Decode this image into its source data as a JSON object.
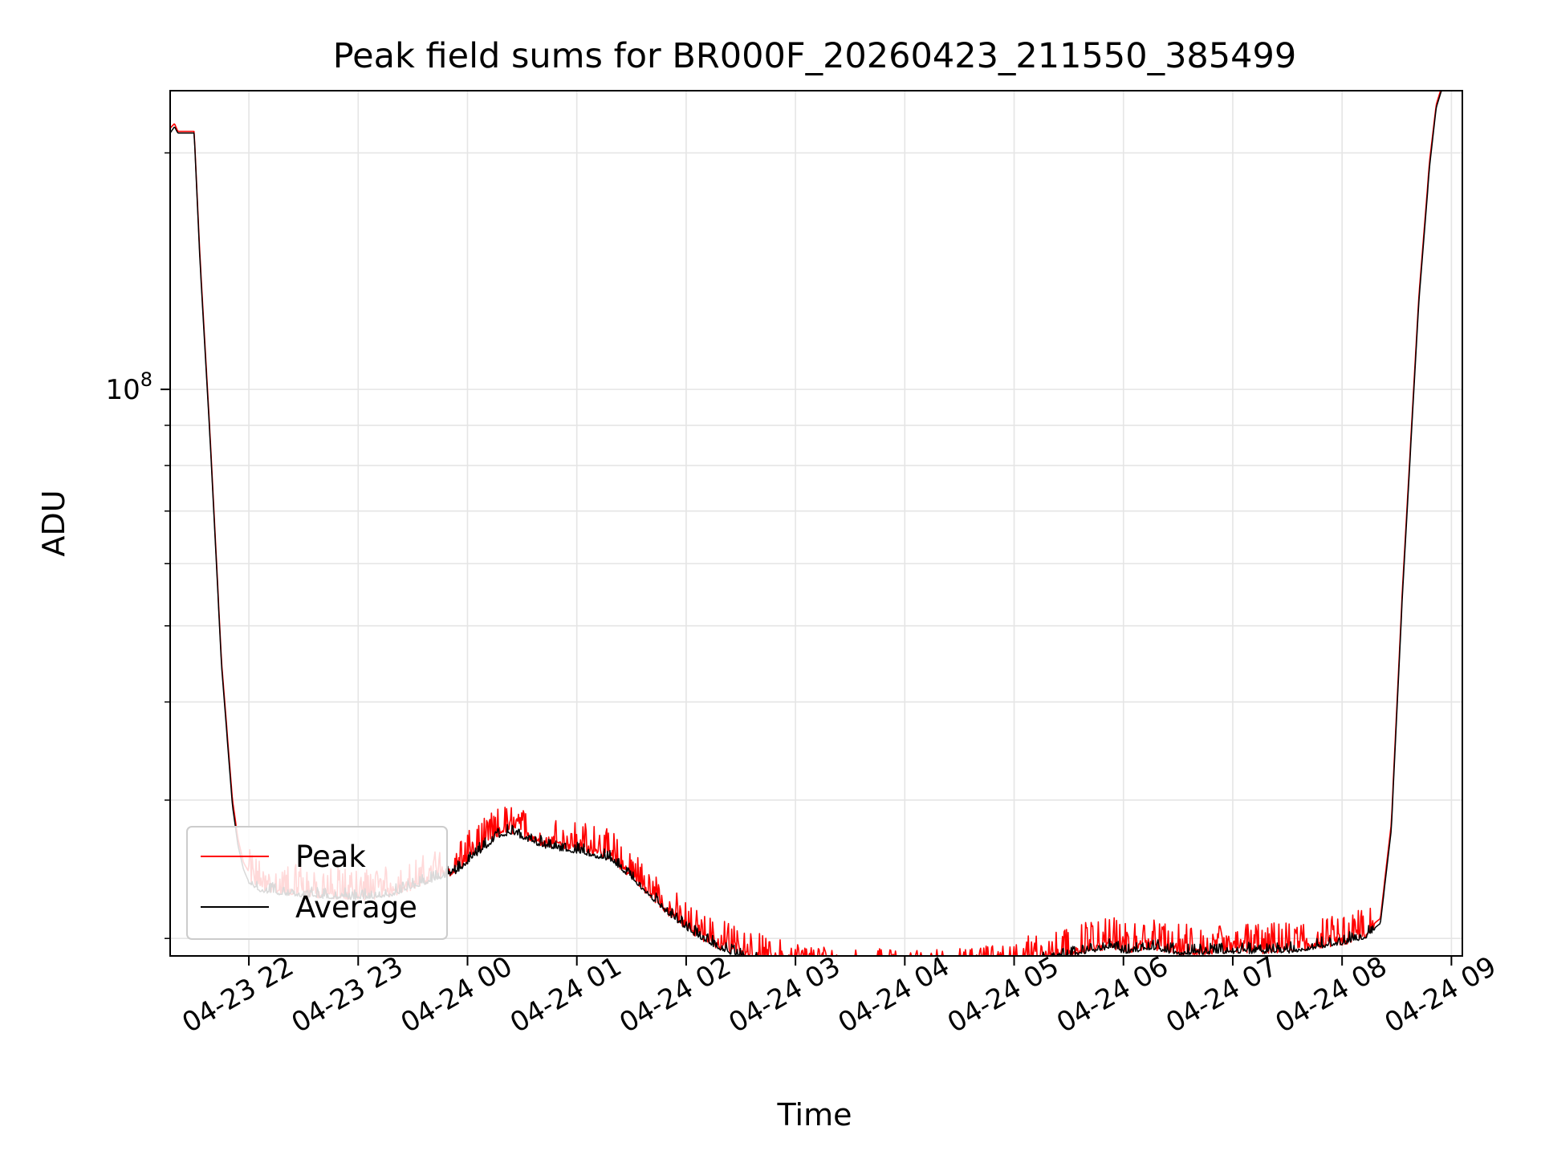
{
  "chart_data": {
    "type": "line",
    "title": "Peak field sums for BR000F_20260423_211550_385499",
    "xlabel": "Time",
    "ylabel": "ADU",
    "yscale": "log",
    "ylim": [
      19000000,
      240000000
    ],
    "xlim": [
      -0.72,
      11.1
    ],
    "x_unit": "hours since 2026-04-23 22:00",
    "grid": true,
    "legend_position": "lower-left",
    "x_ticks": [
      {
        "value": 0,
        "label": "04-23 22"
      },
      {
        "value": 1,
        "label": "04-23 23"
      },
      {
        "value": 2,
        "label": "04-24 00"
      },
      {
        "value": 3,
        "label": "04-24 01"
      },
      {
        "value": 4,
        "label": "04-24 02"
      },
      {
        "value": 5,
        "label": "04-24 03"
      },
      {
        "value": 6,
        "label": "04-24 04"
      },
      {
        "value": 7,
        "label": "04-24 05"
      },
      {
        "value": 8,
        "label": "04-24 06"
      },
      {
        "value": 9,
        "label": "04-24 07"
      },
      {
        "value": 10,
        "label": "04-24 08"
      },
      {
        "value": 11,
        "label": "04-24 09"
      }
    ],
    "y_major_ticks": [
      {
        "value": 100000000,
        "base": "10",
        "exp": "8"
      }
    ],
    "y_minor_ticks": [
      20000000,
      30000000,
      40000000,
      50000000,
      60000000,
      70000000,
      80000000,
      90000000,
      200000000
    ],
    "series": [
      {
        "name": "Peak",
        "color": "#ff0000",
        "spike_amplitude": 0.07,
        "x": [
          -0.72,
          -0.68,
          -0.65,
          -0.5,
          -0.45,
          -0.35,
          -0.25,
          -0.15,
          -0.1,
          -0.05,
          0,
          0.1,
          0.3,
          0.6,
          1.0,
          1.3,
          1.6,
          1.9,
          2.1,
          2.3,
          2.4,
          2.5,
          2.6,
          2.7,
          2.8,
          3.0,
          3.3,
          3.5,
          3.7,
          4.0,
          4.3,
          4.6,
          4.9,
          5.0,
          5.3,
          5.6,
          5.9,
          6.0,
          6.5,
          7.0,
          7.5,
          7.9,
          8.0,
          8.3,
          8.5,
          9.0,
          9.5,
          9.8,
          10.0,
          10.2,
          10.35,
          10.45,
          10.55,
          10.7,
          10.8,
          10.86,
          10.92
        ],
        "y": [
          215000000,
          218000000,
          213000000,
          213000000,
          150000000,
          85000000,
          45000000,
          30000000,
          26800000,
          25000000,
          24300000,
          23600000,
          23300000,
          23100000,
          22900000,
          23100000,
          23900000,
          24800000,
          26300000,
          27600000,
          27900000,
          27500000,
          27100000,
          26800000,
          26600000,
          26400000,
          25800000,
          24400000,
          22800000,
          20900000,
          19800000,
          19100000,
          18600000,
          18500000,
          18300000,
          18200000,
          18100000,
          18100000,
          18200000,
          18700000,
          19400000,
          19900000,
          19600000,
          19800000,
          19500000,
          19600000,
          19600000,
          19900000,
          20100000,
          20400000,
          21200000,
          28000000,
          55000000,
          130000000,
          195000000,
          230000000,
          245000000
        ]
      },
      {
        "name": "Average",
        "color": "#000000",
        "spike_amplitude": 0.025,
        "x": [
          -0.72,
          -0.68,
          -0.65,
          -0.5,
          -0.45,
          -0.35,
          -0.25,
          -0.15,
          -0.1,
          -0.05,
          0,
          0.1,
          0.3,
          0.6,
          1.0,
          1.3,
          1.6,
          1.9,
          2.1,
          2.3,
          2.4,
          2.5,
          2.6,
          2.7,
          2.8,
          3.0,
          3.3,
          3.5,
          3.7,
          4.0,
          4.3,
          4.6,
          4.9,
          5.0,
          5.3,
          5.6,
          5.9,
          6.0,
          6.5,
          7.0,
          7.5,
          7.9,
          8.0,
          8.3,
          8.5,
          9.0,
          9.5,
          9.8,
          10.0,
          10.2,
          10.35,
          10.45,
          10.55,
          10.7,
          10.8,
          10.86,
          10.92
        ],
        "y": [
          212000000,
          216000000,
          212000000,
          212000000,
          148000000,
          84000000,
          44500000,
          29500000,
          26300000,
          24500000,
          23600000,
          23100000,
          22900000,
          22700000,
          22600000,
          22800000,
          23600000,
          24400000,
          25800000,
          27100000,
          27400000,
          27000000,
          26600000,
          26300000,
          26100000,
          25900000,
          25300000,
          24000000,
          22500000,
          20600000,
          19500000,
          18800000,
          18300000,
          18200000,
          18000000,
          17900000,
          17800000,
          17800000,
          17900000,
          18400000,
          19100000,
          19600000,
          19300000,
          19500000,
          19200000,
          19300000,
          19300000,
          19600000,
          19800000,
          20100000,
          20900000,
          27500000,
          54000000,
          128000000,
          192000000,
          228000000,
          243000000
        ]
      }
    ]
  }
}
